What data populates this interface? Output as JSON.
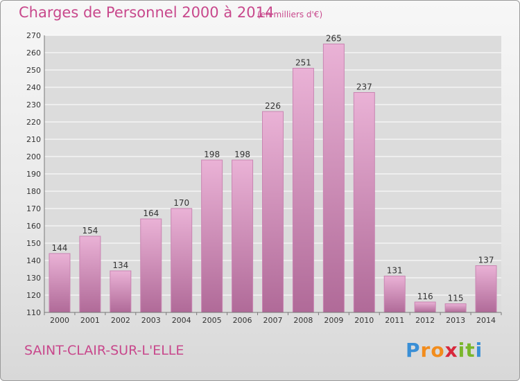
{
  "title": "Charges de Personnel 2000 à 2014",
  "subtitle": "(en milliers d'€)",
  "town": "SAINT-CLAIR-SUR-L'ELLE",
  "logo": {
    "text": "Proxiti",
    "letters": [
      {
        "char": "P",
        "color": "#3a8fd6"
      },
      {
        "char": "r",
        "color": "#f28c1c"
      },
      {
        "char": "o",
        "color": "#f28c1c"
      },
      {
        "char": "x",
        "color": "#d8283c"
      },
      {
        "char": "i",
        "color": "#7ab62c"
      },
      {
        "char": "t",
        "color": "#7ab62c"
      },
      {
        "char": "i",
        "color": "#3a8fd6"
      }
    ]
  },
  "colors": {
    "text_accent": "#c8488c",
    "bar_top": "#eab2d6",
    "bar_bottom": "#b06a98",
    "bar_edge": "#c985b2",
    "grid": "#ffffff",
    "plot_bg": "#dcdcdc"
  },
  "chart_data": {
    "type": "bar",
    "title": "Charges de Personnel 2000 à 2014",
    "subtitle": "(en milliers d'€)",
    "xlabel": "",
    "ylabel": "",
    "categories": [
      "2000",
      "2001",
      "2002",
      "2003",
      "2004",
      "2005",
      "2006",
      "2007",
      "2008",
      "2009",
      "2010",
      "2011",
      "2012",
      "2013",
      "2014"
    ],
    "values": [
      144,
      154,
      134,
      164,
      170,
      198,
      198,
      226,
      251,
      265,
      237,
      131,
      116,
      115,
      137
    ],
    "ylim": [
      110,
      270
    ],
    "yticks": [
      110,
      120,
      130,
      140,
      150,
      160,
      170,
      180,
      190,
      200,
      210,
      220,
      230,
      240,
      250,
      260,
      270
    ],
    "grid": true,
    "data_labels": true,
    "legend": "none"
  }
}
